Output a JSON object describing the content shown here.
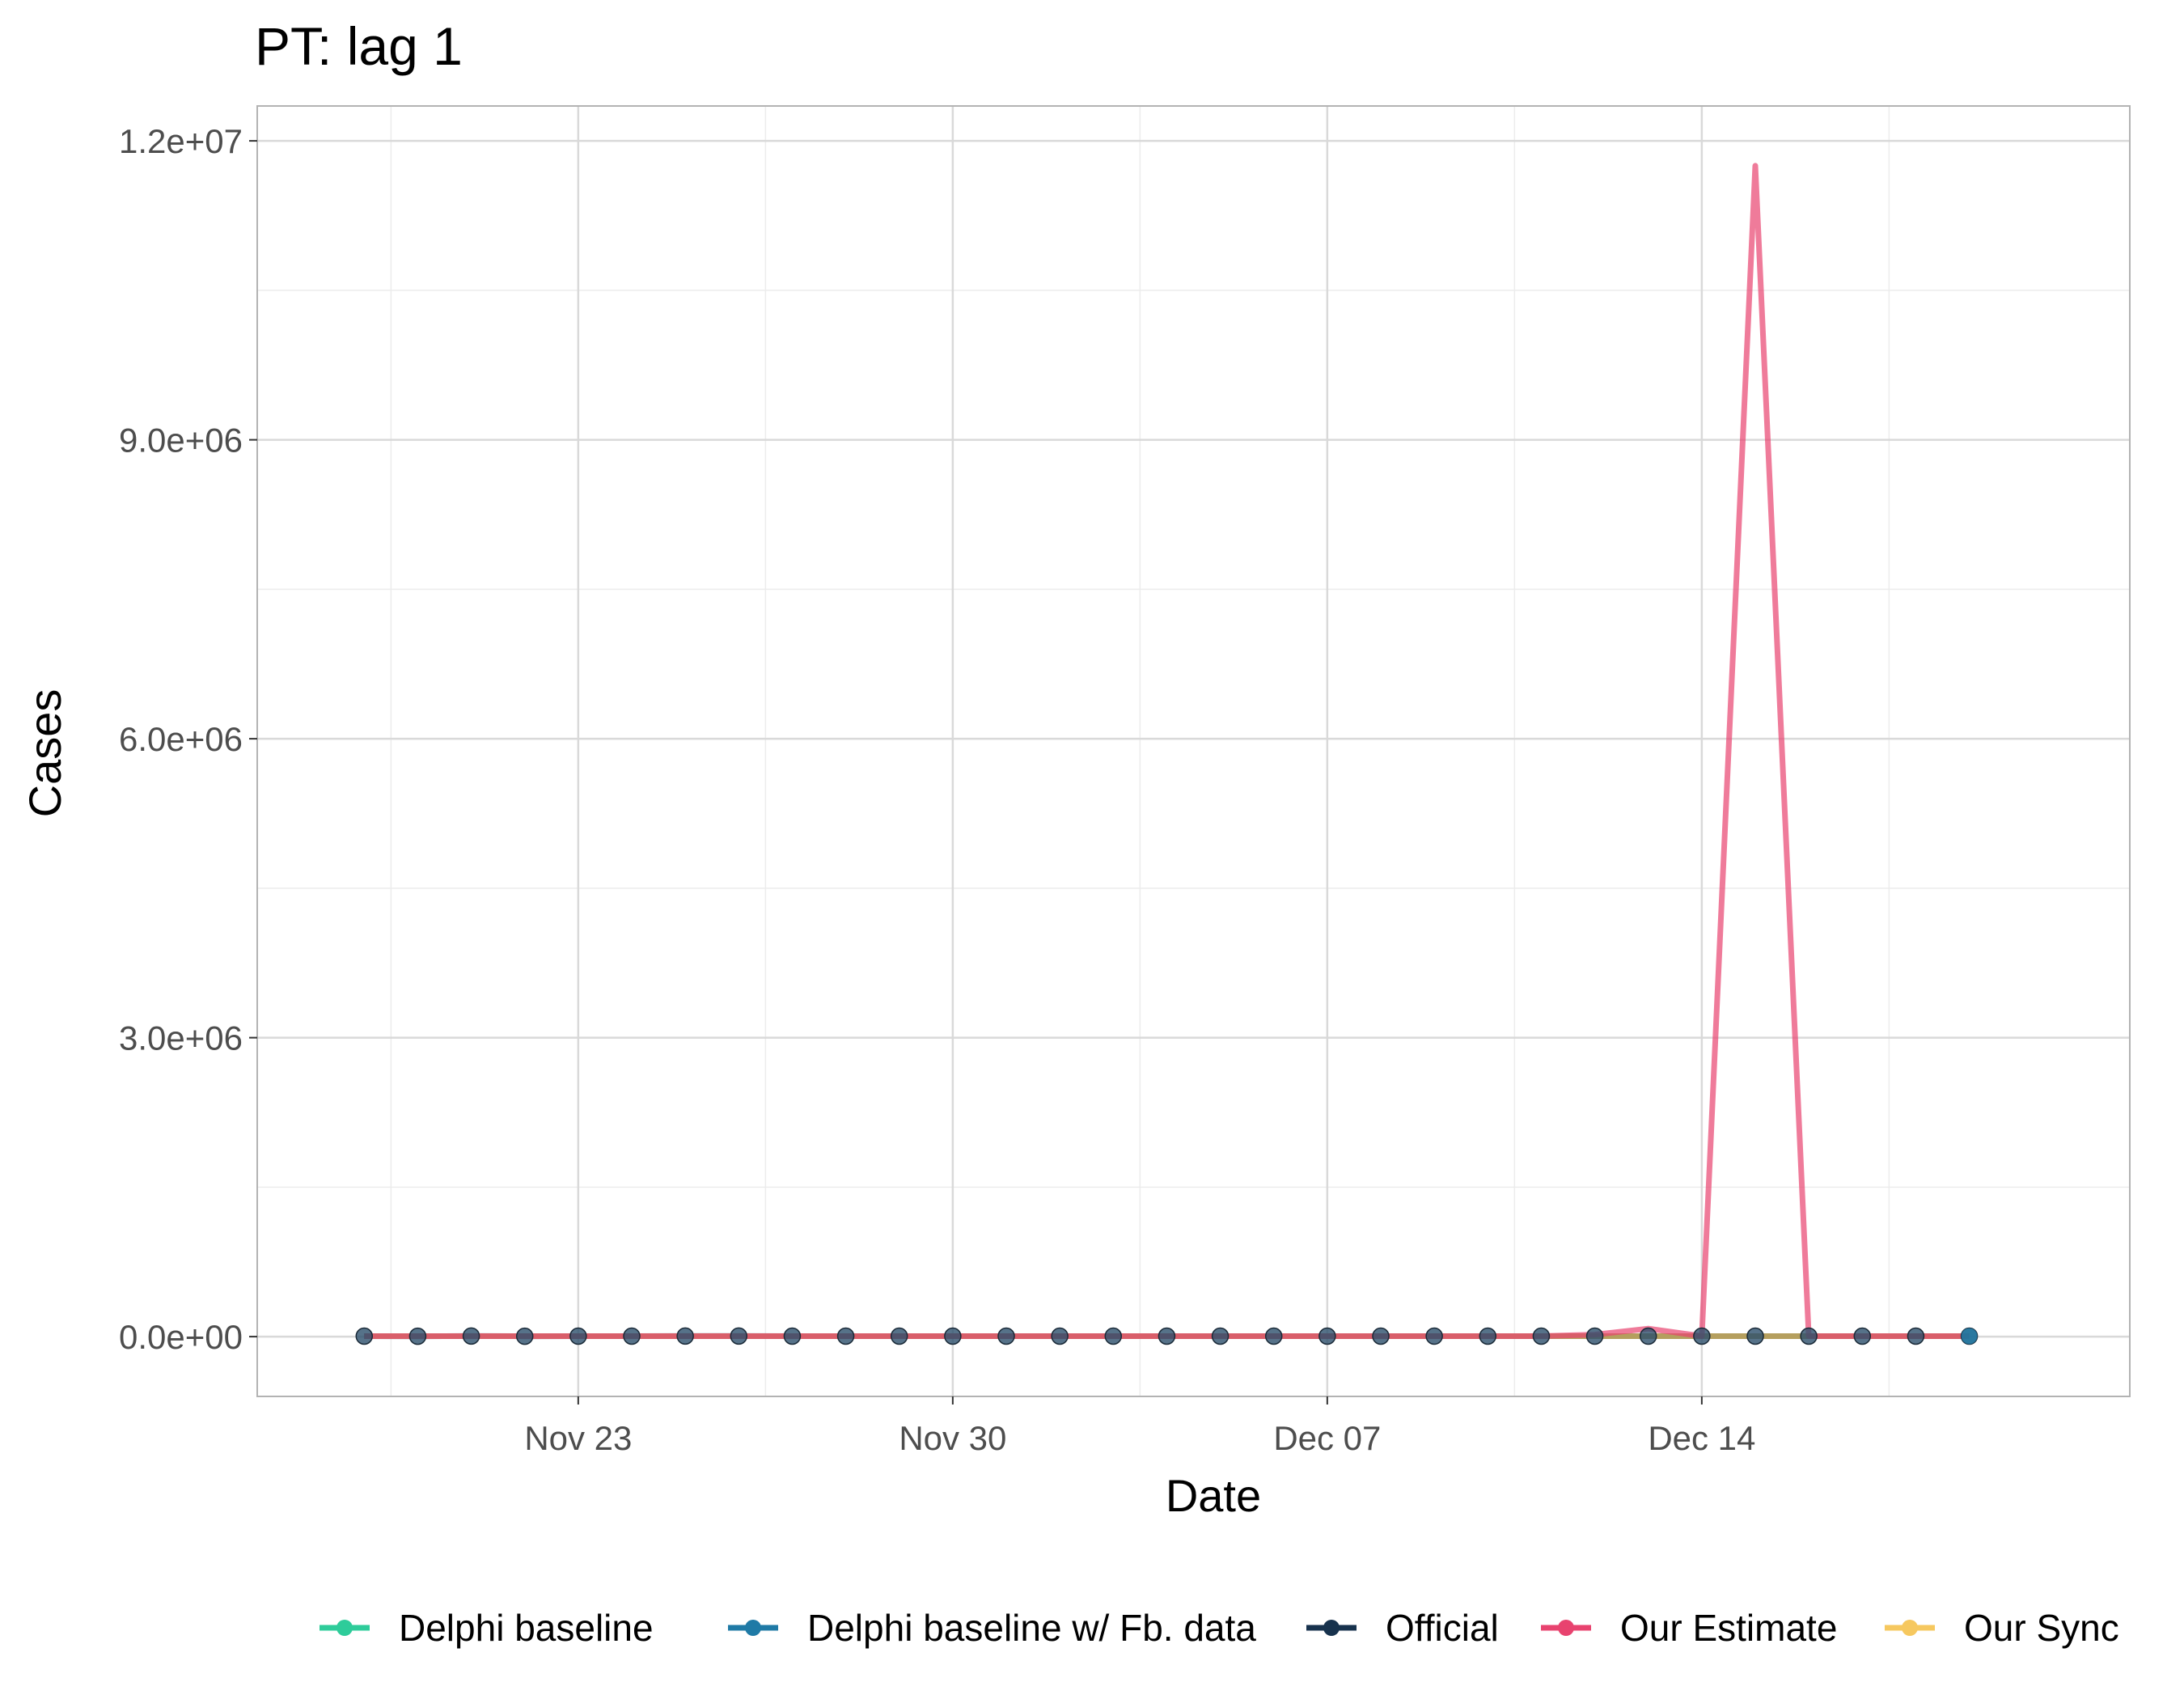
{
  "chart_data": {
    "type": "line",
    "title": "PT: lag 1",
    "xlabel": "Date",
    "ylabel": "Cases",
    "x_ticks": [
      {
        "date": "2020-11-23",
        "label": "Nov 23"
      },
      {
        "date": "2020-11-30",
        "label": "Nov 30"
      },
      {
        "date": "2020-12-07",
        "label": "Dec 07"
      },
      {
        "date": "2020-12-14",
        "label": "Dec 14"
      }
    ],
    "y_ticks": [
      {
        "value": 0,
        "label": "0.0e+00"
      },
      {
        "value": 3000000,
        "label": "3.0e+06"
      },
      {
        "value": 6000000,
        "label": "6.0e+06"
      },
      {
        "value": 9000000,
        "label": "9.0e+06"
      },
      {
        "value": 12000000,
        "label": "1.2e+07"
      }
    ],
    "xlim": [
      "2020-11-17",
      "2020-12-22"
    ],
    "ylim": [
      -600000,
      12350000
    ],
    "grid": true,
    "legend_position": "bottom",
    "x": [
      "2020-11-19",
      "2020-11-20",
      "2020-11-21",
      "2020-11-22",
      "2020-11-23",
      "2020-11-24",
      "2020-11-25",
      "2020-11-26",
      "2020-11-27",
      "2020-11-28",
      "2020-11-29",
      "2020-11-30",
      "2020-12-01",
      "2020-12-02",
      "2020-12-03",
      "2020-12-04",
      "2020-12-05",
      "2020-12-06",
      "2020-12-07",
      "2020-12-08",
      "2020-12-09",
      "2020-12-10",
      "2020-12-11",
      "2020-12-12",
      "2020-12-13",
      "2020-12-14",
      "2020-12-15",
      "2020-12-16",
      "2020-12-17",
      "2020-12-18",
      "2020-12-19"
    ],
    "series": [
      {
        "name": "Delphi baseline",
        "color": "#2ecc9a",
        "values": [
          5000,
          5000,
          5000,
          5000,
          5000,
          5000,
          5000,
          5000,
          5000,
          5000,
          5000,
          5000,
          5000,
          5000,
          5000,
          5000,
          5000,
          5000,
          5000,
          5000,
          5000,
          5000,
          5000,
          5000,
          5000,
          5000,
          5000,
          5000,
          5000,
          5000,
          5000
        ]
      },
      {
        "name": "Delphi baseline w/ Fb. data",
        "color": "#1f7aa6",
        "values": [
          5000,
          5000,
          5000,
          5000,
          5000,
          5000,
          5000,
          5000,
          5000,
          5000,
          5000,
          5000,
          5000,
          5000,
          5000,
          5000,
          5000,
          5000,
          5000,
          5000,
          5000,
          5000,
          5000,
          5000,
          5000,
          5000,
          5000,
          5000,
          5000,
          5000,
          5000
        ]
      },
      {
        "name": "Official",
        "color": "#17324d",
        "values": [
          5000,
          4000,
          6000,
          4000,
          5000,
          5000,
          6000,
          6000,
          5000,
          5000,
          5000,
          5000,
          5000,
          5000,
          5000,
          5000,
          5000,
          5000,
          5000,
          5000,
          5000,
          5000,
          5000,
          5000,
          5000,
          5000,
          5000,
          5000,
          5000,
          5000,
          5000
        ]
      },
      {
        "name": "Our Estimate",
        "color": "#e8436f",
        "values": [
          5000,
          5000,
          5000,
          5000,
          5000,
          5000,
          5000,
          5000,
          5000,
          5000,
          5000,
          5000,
          5000,
          5000,
          5000,
          5000,
          5000,
          5000,
          5000,
          5000,
          5000,
          5000,
          5000,
          20000,
          80000,
          5000,
          11750000,
          5000,
          5000,
          5000,
          5000
        ]
      },
      {
        "name": "Our Sync",
        "color": "#f6c85f",
        "values": [
          5000,
          5000,
          5000,
          5000,
          5000,
          5000,
          5000,
          5000,
          5000,
          5000,
          5000,
          5000,
          5000,
          5000,
          5000,
          5000,
          5000,
          5000,
          5000,
          5000,
          5000,
          5000,
          5000,
          5000,
          5000,
          5000,
          5000,
          5000,
          5000,
          5000,
          5000
        ]
      }
    ]
  }
}
